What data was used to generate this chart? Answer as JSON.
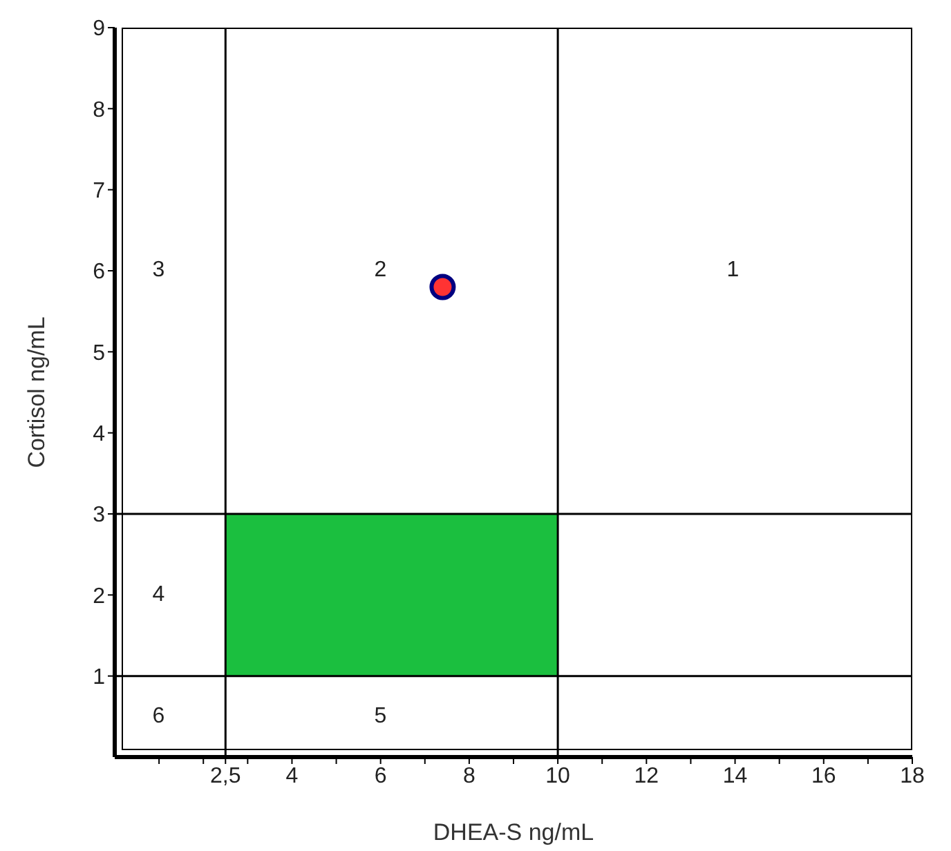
{
  "chart_data": {
    "type": "scatter",
    "xlabel": "DHEA-S ng/mL",
    "ylabel": "Cortisol ng/mL",
    "xlim": [
      0,
      18
    ],
    "ylim": [
      0,
      9
    ],
    "xticks": [
      {
        "value": 1,
        "label": null
      },
      {
        "value": 2,
        "label": null
      },
      {
        "value": 2.5,
        "label": "2,5"
      },
      {
        "value": 3,
        "label": null
      },
      4,
      {
        "value": 5,
        "label": null
      },
      6,
      {
        "value": 7,
        "label": null
      },
      8,
      {
        "value": 9,
        "label": null
      },
      10,
      {
        "value": 11,
        "label": null
      },
      12,
      {
        "value": 13,
        "label": null
      },
      14,
      {
        "value": 15,
        "label": null
      },
      16,
      {
        "value": 17,
        "label": null
      },
      18
    ],
    "yticks": [
      1,
      2,
      3,
      4,
      5,
      6,
      7,
      8,
      9
    ],
    "x": [
      7.4
    ],
    "series": [
      {
        "color": "#ff3333",
        "values": [
          5.8
        ]
      }
    ],
    "marker": "circle",
    "grid": false,
    "legend": false,
    "bands": [
      {
        "axis": "x",
        "from": 2.5,
        "to": 10,
        "color": "#1bbf3f"
      }
    ],
    "ref_lines": [
      {
        "axis": "x",
        "value": 2.5
      },
      {
        "axis": "x",
        "value": 10
      },
      {
        "axis": "y",
        "value": 1
      },
      {
        "axis": "y",
        "value": 3
      }
    ],
    "annotations": [
      "1",
      "2",
      "3",
      "4",
      "5",
      "6"
    ]
  }
}
